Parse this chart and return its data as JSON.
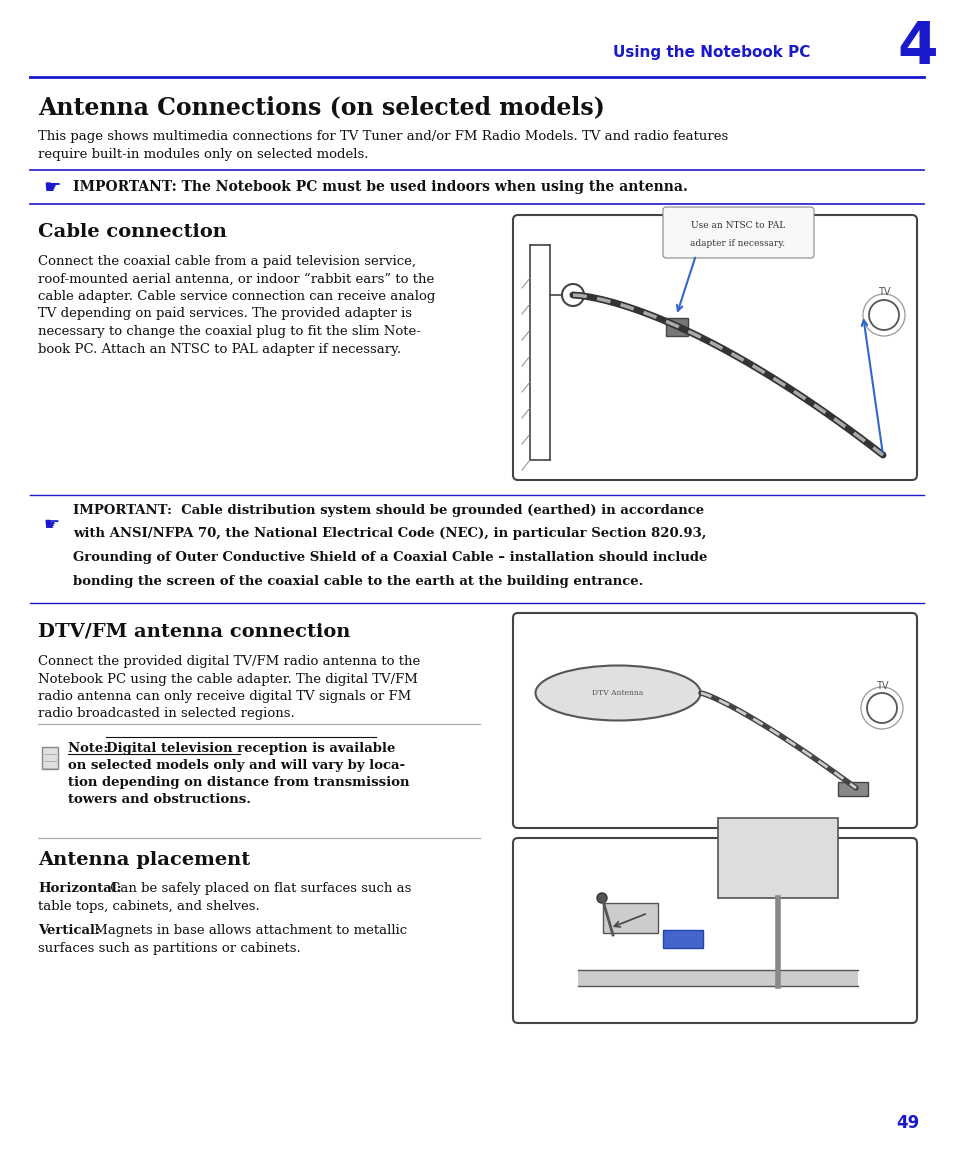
{
  "page_bg": "#ffffff",
  "dark_blue": "#1a1acc",
  "black": "#111111",
  "gray": "#555555",
  "header_text": "Using the Notebook PC",
  "header_number": "4",
  "main_title": "Antenna Connections (on selected models)",
  "intro_line1": "This page shows multimedia connections for TV Tuner and/or FM Radio Models. TV and radio features",
  "intro_line2": "require built-in modules only on selected models.",
  "imp1": "IMPORTANT: The Notebook PC must be used indoors when using the antenna.",
  "cable_title": "Cable connection",
  "cable_body": [
    "Connect the coaxial cable from a paid television service,",
    "roof-mounted aerial antenna, or indoor “rabbit ears” to the",
    "cable adapter. Cable service connection can receive analog",
    "TV depending on paid services. The provided adapter is",
    "necessary to change the coaxial plug to fit the slim Note-",
    "book PC. Attach an NTSC to PAL adapter if necessary."
  ],
  "imp2_lines": [
    "IMPORTANT:  Cable distribution system should be grounded (earthed) in accordance",
    "with ANSI/NFPA 70, the National Electrical Code (NEC), in particular Section 820.93,",
    "Grounding of Outer Conductive Shield of a Coaxial Cable – installation should include",
    "bonding the screen of the coaxial cable to the earth at the building entrance."
  ],
  "dtv_title": "DTV/FM antenna connection",
  "dtv_body": [
    "Connect the provided digital TV/FM radio antenna to the",
    "Notebook PC using the cable adapter. The digital TV/FM",
    "radio antenna can only receive digital TV signals or FM",
    "radio broadcasted in selected regions."
  ],
  "note_line1": "Note: Digital television reception is available",
  "note_line1b": "Digital television reception is available",
  "note_line2": "on selected models only and will vary by loca-",
  "note_line2b": "on selected models only",
  "note_line3": "tion depending on distance from transmission",
  "note_line4": "towers and obstructions.",
  "ant_title": "Antenna placement",
  "ant_text1_b": "Horizontal:",
  "ant_text1_r": " Can be safely placed on flat surfaces such as",
  "ant_text1_r2": "table tops, cabinets, and shelves.",
  "ant_text2_b": "Vertical:",
  "ant_text2_r": " Magnets in base allows attachment to metallic",
  "ant_text2_r2": "surfaces such as partitions or cabinets.",
  "page_num": "49",
  "callout_line1": "Use an NTSC to PAL",
  "callout_line2": "adapter if necessary."
}
